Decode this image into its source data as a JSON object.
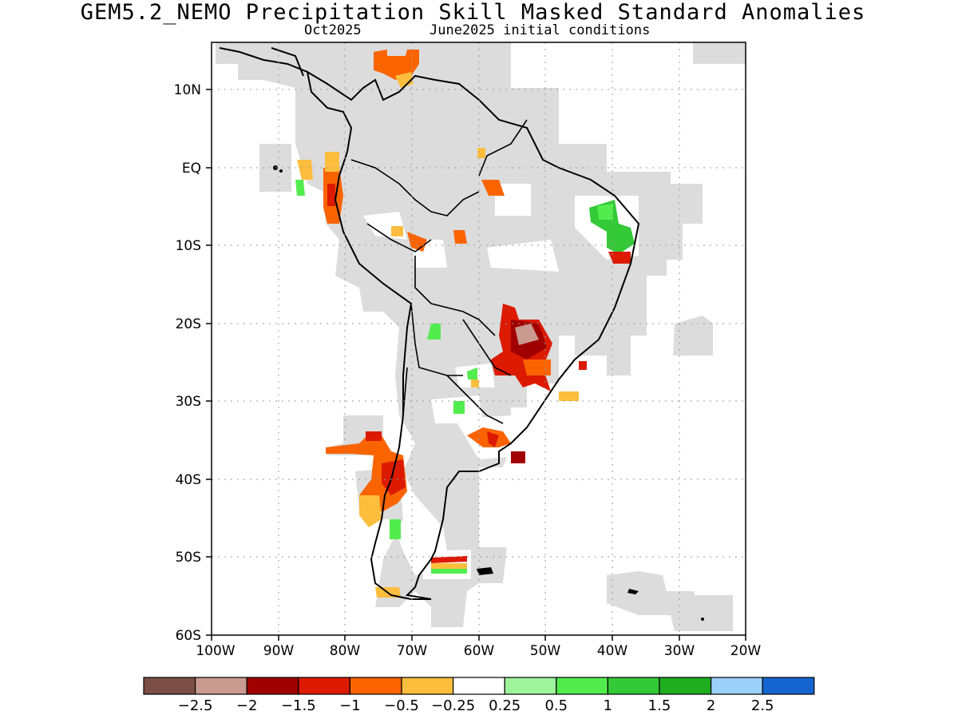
{
  "title": "GEM5.2_NEMO Precipitation Skill Masked Standard Anomalies",
  "subtitle_left": "Oct2025",
  "subtitle_right": "June2025 initial conditions",
  "y_ticks": [
    "10N",
    "EQ",
    "10S",
    "20S",
    "30S",
    "40S",
    "50S",
    "60S"
  ],
  "x_ticks": [
    "100W",
    "90W",
    "80W",
    "70W",
    "60W",
    "50W",
    "40W",
    "30W",
    "20W"
  ],
  "colorbar": {
    "colors": [
      "#7b4f45",
      "#c99a90",
      "#a10000",
      "#dc1a00",
      "#fa6400",
      "#fdbe3e",
      "#ffffff",
      "#9ef49b",
      "#53ec4e",
      "#33c937",
      "#20ad20",
      "#9bd0f8",
      "#1565d0"
    ],
    "labels": [
      "−2.5",
      "−2",
      "−1.5",
      "−1",
      "−0.5",
      "−0.25",
      "0.25",
      "0.5",
      "1",
      "1.5",
      "2",
      "2.5"
    ]
  },
  "colors": {
    "mask_gray": "#dcdcdc",
    "coastline": "#000000"
  }
}
